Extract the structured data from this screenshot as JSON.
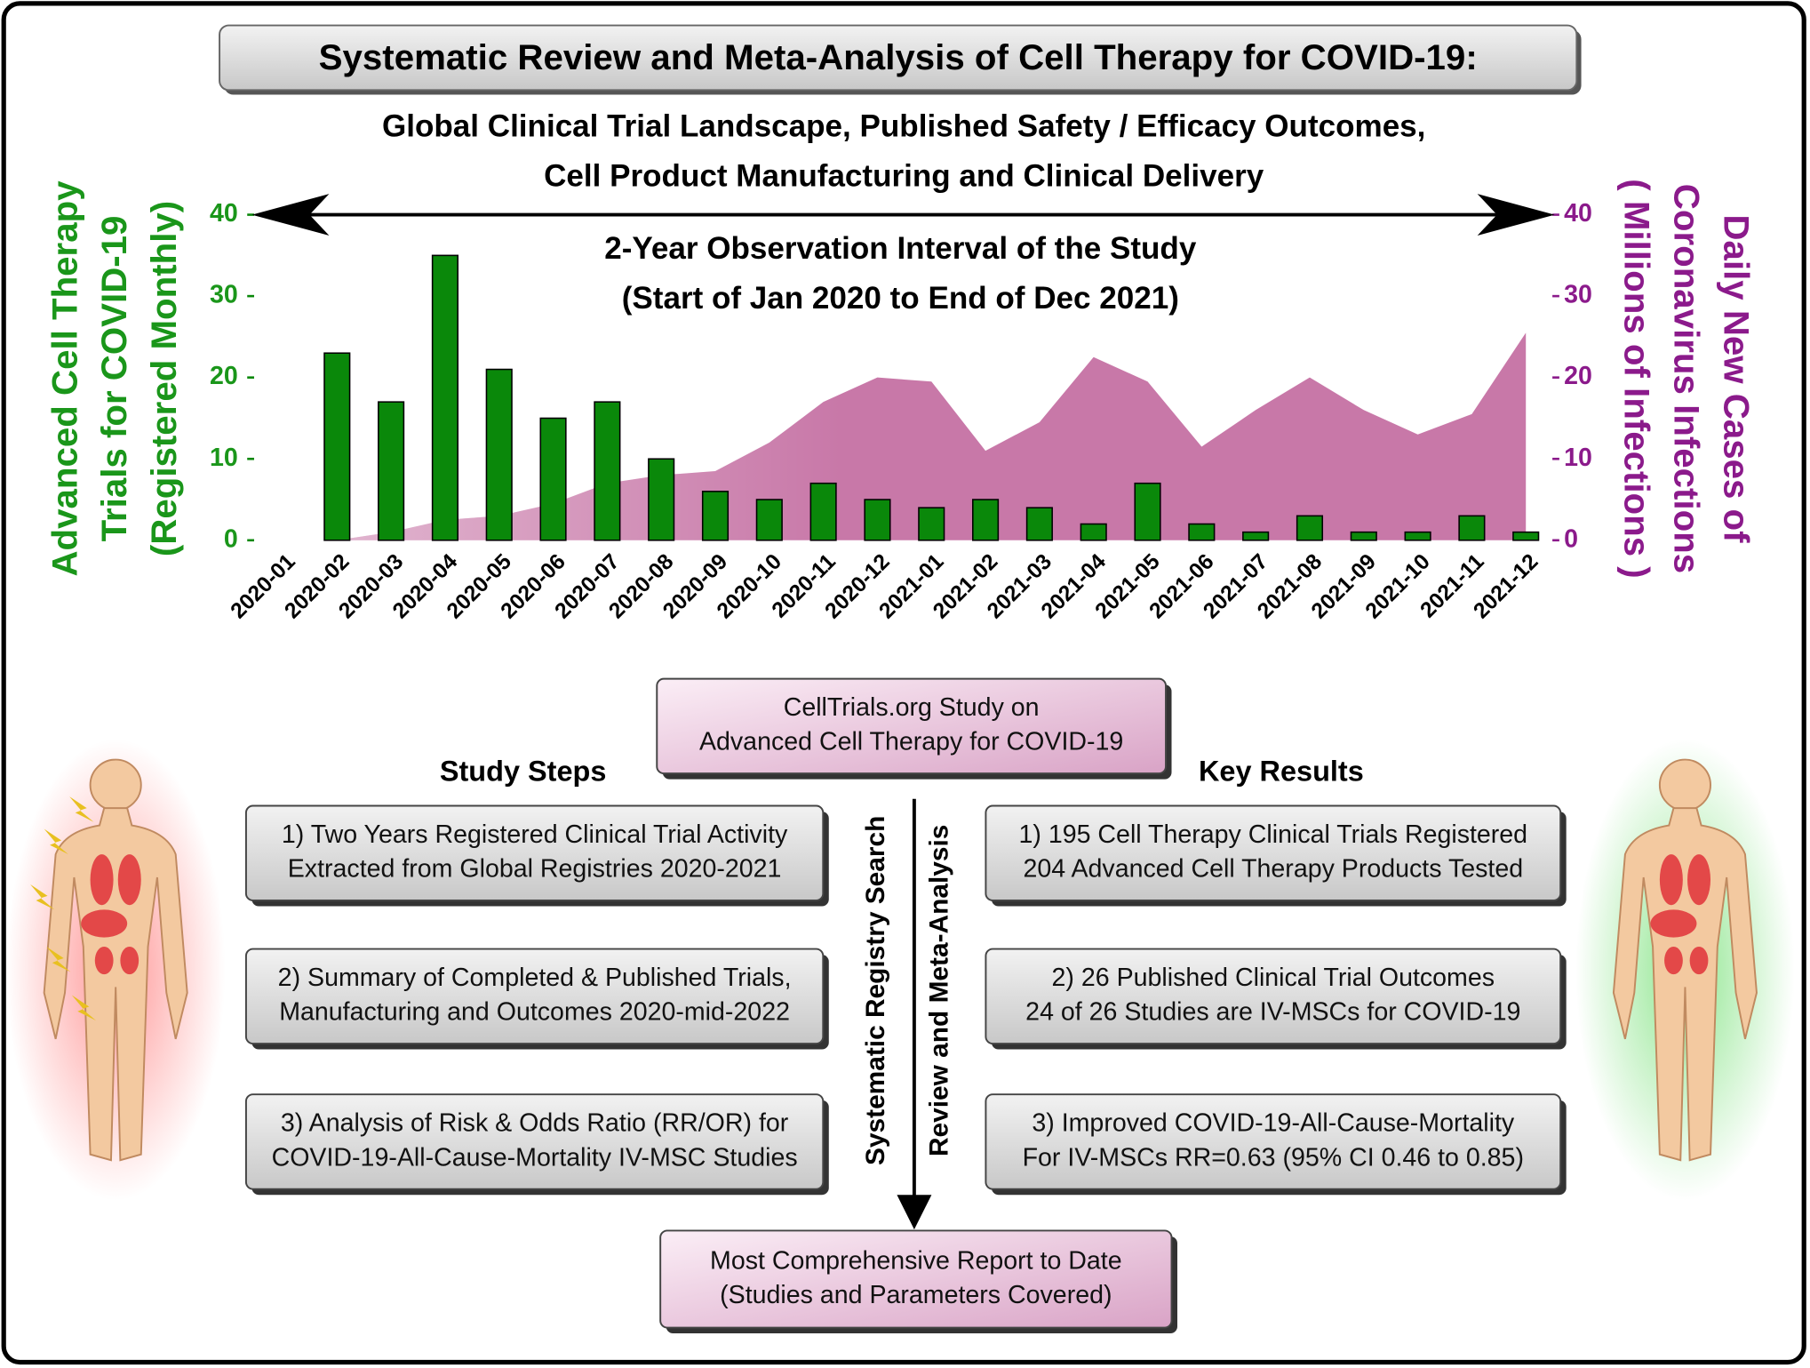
{
  "header": {
    "title": "Systematic Review and Meta-Analysis of Cell Therapy for COVID-19:",
    "subtitle": [
      "Global Clinical Trial Landscape, Published Safety / Efficacy Outcomes,",
      "Cell Product Manufacturing and Clinical Delivery"
    ]
  },
  "chart_data": {
    "type": "bar_area",
    "annotation": [
      "2-Year Observation Interval of the Study",
      "(Start of Jan 2020 to End of Dec 2021)"
    ],
    "ylabel": [
      "Advanced Cell Therapy",
      "Trials for COVID-19",
      "(Registered Monthly)"
    ],
    "y2label": [
      "Daily New Cases of",
      "Coronavirus Infections",
      "( Millions of Infections )"
    ],
    "categories": [
      "2020-01",
      "2020-02",
      "2020-03",
      "2020-04",
      "2020-05",
      "2020-06",
      "2020-07",
      "2020-08",
      "2020-09",
      "2020-10",
      "2020-11",
      "2020-12",
      "2021-01",
      "2021-02",
      "2021-03",
      "2021-04",
      "2021-05",
      "2021-06",
      "2021-07",
      "2021-08",
      "2021-09",
      "2021-10",
      "2021-11",
      "2021-12"
    ],
    "series": [
      {
        "color": "#0a880a",
        "values": [
          0,
          23,
          17,
          35,
          21,
          15,
          17,
          10,
          6,
          5,
          7,
          5,
          4,
          5,
          4,
          2,
          7,
          2,
          1,
          3,
          1,
          1,
          3,
          1
        ]
      },
      {
        "color": "#c878a8",
        "axis": "y2",
        "values": [
          0,
          0,
          1,
          2.5,
          3,
          4.5,
          7,
          8,
          8.5,
          12,
          17,
          20,
          19.5,
          11,
          14.5,
          22.5,
          19.5,
          11.5,
          16,
          20,
          16,
          13,
          15.5,
          25.5
        ]
      }
    ],
    "ylim": [
      0,
      40
    ],
    "yticks": [
      0,
      10,
      20,
      30,
      40
    ],
    "y2lim": [
      0,
      40
    ],
    "y2ticks": [
      0,
      10,
      20,
      30,
      40
    ]
  },
  "center_box": [
    "CellTrials.org Study on",
    "Advanced Cell Therapy for COVID-19"
  ],
  "study_steps": {
    "heading": "Study Steps",
    "items": [
      [
        "1) Two Years Registered Clinical Trial Activity",
        "Extracted from Global Registries 2020-2021"
      ],
      [
        "2) Summary of Completed & Published Trials,",
        "Manufacturing and Outcomes 2020-mid-2022"
      ],
      [
        "3) Analysis of Risk & Odds Ratio (RR/OR) for",
        "COVID-19-All-Cause-Mortality IV-MSC Studies"
      ]
    ]
  },
  "key_results": {
    "heading": "Key Results",
    "items": [
      [
        "1) 195 Cell Therapy Clinical Trials Registered",
        "204 Advanced Cell Therapy Products Tested"
      ],
      [
        "2) 26 Published Clinical Trial Outcomes",
        "24 of 26 Studies are IV-MSCs for COVID-19"
      ],
      [
        "3) Improved COVID-19-All-Cause-Mortality",
        "For IV-MSCs RR=0.63 (95% CI 0.46 to 0.85)"
      ]
    ]
  },
  "flow_labels": [
    "Systematic Registry Search",
    "Review and Meta-Analysis"
  ],
  "footer_box": [
    "Most Comprehensive Report to Date",
    "(Studies and Parameters Covered)"
  ]
}
